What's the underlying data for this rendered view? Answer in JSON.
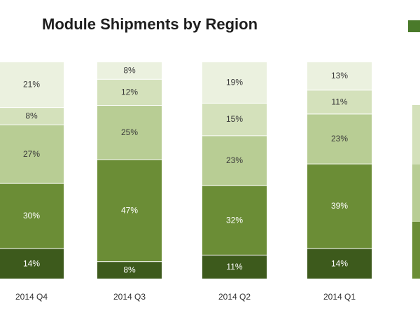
{
  "chart_data": {
    "type": "bar",
    "stacked": true,
    "title": "Module Shipments by Region",
    "categories": [
      "2014 Q4",
      "2014 Q3",
      "2014 Q2",
      "2014 Q1"
    ],
    "series": [
      {
        "values": [
          14,
          8,
          11,
          14
        ],
        "color": "#3d5a1c"
      },
      {
        "values": [
          30,
          47,
          32,
          39
        ],
        "color": "#6b8d36"
      },
      {
        "values": [
          27,
          25,
          23,
          23
        ],
        "color": "#b8cd94"
      },
      {
        "values": [
          8,
          12,
          15,
          11
        ],
        "color": "#d4e1bb"
      },
      {
        "values": [
          21,
          8,
          19,
          13
        ],
        "color": "#ebf1df"
      }
    ],
    "data_labels": [
      [
        "14%",
        "30%",
        "27%",
        "8%",
        "21%"
      ],
      [
        "8%",
        "47%",
        "25%",
        "12%",
        "8%"
      ],
      [
        "11%",
        "32%",
        "23%",
        "15%",
        "19%"
      ],
      [
        "14%",
        "39%",
        "23%",
        "11%",
        "13%"
      ]
    ],
    "ylim": [
      0,
      100
    ],
    "legend": "top-right"
  }
}
